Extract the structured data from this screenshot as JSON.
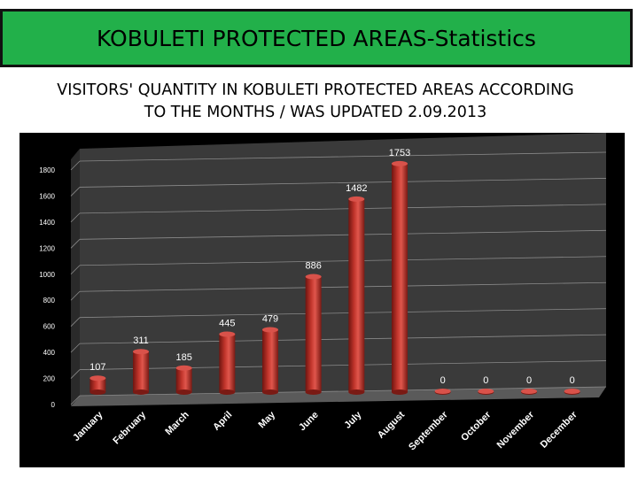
{
  "header": {
    "title": "KOBULETI PROTECTED AREAS-Statistics",
    "subtitle_line1": "VISITORS' QUANTITY IN KOBULETI PROTECTED AREAS ACCORDING",
    "subtitle_line2": "TO THE MONTHS / WAS UPDATED 2.09.2013"
  },
  "colors": {
    "banner": "#22b04a",
    "bar": "#c0342b",
    "chart_background": "#000000",
    "plot_wall": "#3a3a3a",
    "label_text": "#ffffff"
  },
  "chart_data": {
    "type": "bar",
    "style": "3d-cylinder",
    "categories": [
      "January",
      "February",
      "March",
      "April",
      "May",
      "June",
      "July",
      "August",
      "September",
      "October",
      "November",
      "December"
    ],
    "values": [
      107,
      311,
      185,
      445,
      479,
      886,
      1482,
      1753,
      0,
      0,
      0,
      0
    ],
    "data_labels": true,
    "ylim": [
      0,
      1800
    ],
    "yticks": [
      0,
      200,
      400,
      600,
      800,
      1000,
      1200,
      1400,
      1600,
      1800
    ],
    "grid": true,
    "legend": "none"
  }
}
